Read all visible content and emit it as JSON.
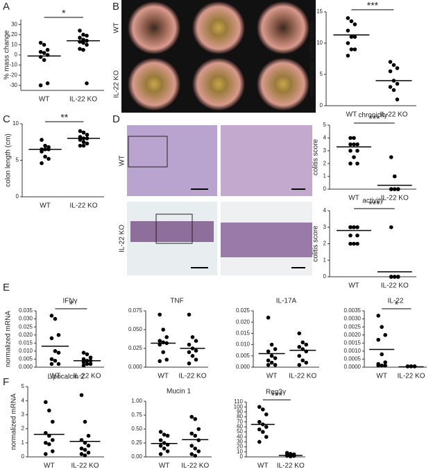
{
  "panel_labels": [
    "A",
    "B",
    "C",
    "D",
    "E",
    "F"
  ],
  "images": {
    "B": {
      "rows": [
        "WT",
        "IL-22 KO"
      ]
    },
    "D": {
      "rows": [
        "WT",
        "IL-22 KO"
      ]
    }
  },
  "chart_data": [
    {
      "type": "dot",
      "ylabel": "% mass change",
      "categories": [
        "WT",
        "IL-22 KO"
      ],
      "significance": "*",
      "points": [
        [
          12,
          10,
          5,
          3,
          2,
          0,
          -2,
          -5,
          -28,
          -30
        ],
        [
          24,
          20,
          19,
          17,
          15,
          14,
          13,
          12,
          10,
          6,
          5,
          -28
        ]
      ],
      "means": [
        -1,
        14
      ],
      "ylim": [
        -35,
        35
      ],
      "yticks": [
        -30,
        -20,
        -10,
        0,
        10,
        20,
        30
      ]
    },
    {
      "type": "dot",
      "ylabel": "endoscopic colitis score",
      "categories": [
        "WT",
        "IL-22 KO"
      ],
      "significance": "***",
      "points": [
        [
          14,
          13.5,
          13,
          12,
          11,
          11,
          10,
          9,
          9,
          8
        ],
        [
          7,
          6.5,
          6,
          5.5,
          4,
          3.5,
          3,
          2.5,
          1
        ]
      ],
      "means": [
        11.3,
        4
      ],
      "ylim": [
        0,
        15
      ],
      "yticks": [
        0,
        5,
        10,
        15
      ]
    },
    {
      "type": "dot",
      "ylabel": "colon length (cm)",
      "categories": [
        "WT",
        "IL-22 KO"
      ],
      "significance": "**",
      "points": [
        [
          7.8,
          7,
          6.8,
          6.5,
          6.5,
          6.5,
          6.2,
          5.5,
          5.2,
          4.6
        ],
        [
          9,
          8.8,
          8.5,
          8.2,
          8,
          8,
          7.8,
          7.5,
          7.3,
          7,
          7
        ]
      ],
      "means": [
        6.5,
        8
      ],
      "ylim": [
        0,
        10
      ],
      "yticks": [
        0,
        5,
        10
      ]
    },
    {
      "type": "dot",
      "title": "chronicity",
      "ylabel": "colitis score",
      "categories": [
        "WT",
        "IL-22 KO"
      ],
      "significance": "***",
      "points": [
        [
          4,
          4,
          3.5,
          3.5,
          3.5,
          3,
          3,
          2.5,
          2,
          2
        ],
        [
          2.5,
          1,
          0,
          0,
          0,
          0,
          0,
          0,
          0,
          0
        ]
      ],
      "means": [
        3.3,
        0.3
      ],
      "ylim": [
        0,
        5
      ],
      "yticks": [
        0,
        1,
        2,
        3,
        4,
        5
      ]
    },
    {
      "type": "dot",
      "title": "activity",
      "ylabel": "colitis score",
      "categories": [
        "WT",
        "IL-22 KO"
      ],
      "significance": "***",
      "points": [
        [
          3,
          3,
          3,
          3,
          3,
          2.5,
          2.5,
          2,
          2,
          2
        ],
        [
          3,
          0,
          0,
          0,
          0,
          0,
          0,
          0,
          0,
          0
        ]
      ],
      "means": [
        2.8,
        0.3
      ],
      "ylim": [
        0,
        4
      ],
      "yticks": [
        0,
        1,
        2,
        3,
        4
      ]
    },
    {
      "type": "dot",
      "title": "IFNγ",
      "ylabel": "normalized mRNA",
      "categories": [
        "WT",
        "IL-22 KO"
      ],
      "significance": "*",
      "points": [
        [
          0.032,
          0.03,
          0.02,
          0.018,
          0.01,
          0.009,
          0.005,
          0.004,
          0.002,
          0.002
        ],
        [
          0.009,
          0.008,
          0.006,
          0.005,
          0.004,
          0.004,
          0.003,
          0.002,
          0.002,
          0.001
        ]
      ],
      "means": [
        0.013,
        0.004
      ],
      "ylim": [
        0,
        0.035
      ],
      "yticks": [
        {
          "value": 0,
          "label": "0.000"
        },
        {
          "value": 0.005,
          "label": "0.005"
        },
        {
          "value": 0.01,
          "label": "0.010"
        },
        {
          "value": 0.015,
          "label": "0.015"
        },
        {
          "value": 0.02,
          "label": "0.020"
        },
        {
          "value": 0.025,
          "label": "0.025"
        },
        {
          "value": 0.03,
          "label": "0.030"
        },
        {
          "value": 0.035,
          "label": "0.035"
        }
      ]
    },
    {
      "type": "dot",
      "title": "TNF",
      "categories": [
        "WT",
        "IL-22 KO"
      ],
      "points": [
        [
          0.07,
          0.05,
          0.04,
          0.035,
          0.033,
          0.032,
          0.03,
          0.02,
          0.01,
          0.008
        ],
        [
          0.07,
          0.04,
          0.035,
          0.03,
          0.025,
          0.022,
          0.02,
          0.015,
          0.01,
          0.005
        ]
      ],
      "means": [
        0.032,
        0.025
      ],
      "ylim": [
        0,
        0.075
      ],
      "yticks": [
        {
          "value": 0,
          "label": "0.000"
        },
        {
          "value": 0.025,
          "label": "0.025"
        },
        {
          "value": 0.05,
          "label": "0.050"
        },
        {
          "value": 0.075,
          "label": "0.075"
        }
      ]
    },
    {
      "type": "dot",
      "title": "IL-17A",
      "categories": [
        "WT",
        "IL-22 KO"
      ],
      "points": [
        [
          0.022,
          0.01,
          0.008,
          0.007,
          0.005,
          0.004,
          0.003,
          0.002,
          0.001,
          0.001
        ],
        [
          0.015,
          0.011,
          0.01,
          0.009,
          0.008,
          0.007,
          0.005,
          0.003,
          0.002,
          0.001
        ]
      ],
      "means": [
        0.006,
        0.0075
      ],
      "ylim": [
        0,
        0.025
      ],
      "yticks": [
        {
          "value": 0,
          "label": "0.000"
        },
        {
          "value": 0.005,
          "label": "0.005"
        },
        {
          "value": 0.01,
          "label": "0.010"
        },
        {
          "value": 0.015,
          "label": "0.015"
        },
        {
          "value": 0.02,
          "label": "0.020"
        },
        {
          "value": 0.025,
          "label": "0.025"
        }
      ]
    },
    {
      "type": "dot",
      "title": "IL-22",
      "categories": [
        "WT",
        "IL-22 KO"
      ],
      "significance": "*",
      "points": [
        [
          0.0032,
          0.0025,
          0.002,
          0.0017,
          0.0008,
          0.0003,
          0.0002,
          0.0001,
          0.0001,
          0.0001
        ],
        [
          5e-05,
          5e-05,
          5e-05,
          5e-05,
          5e-05,
          5e-05
        ]
      ],
      "means": [
        0.0011,
        2e-05
      ],
      "ylim": [
        0,
        0.0035
      ],
      "yticks": [
        {
          "value": 0,
          "label": "0.0000"
        },
        {
          "value": 0.0005,
          "label": "0.0005"
        },
        {
          "value": 0.001,
          "label": "0.0010"
        },
        {
          "value": 0.0015,
          "label": "0.0015"
        },
        {
          "value": 0.002,
          "label": "0.0020"
        },
        {
          "value": 0.0025,
          "label": "0.0025"
        },
        {
          "value": 0.003,
          "label": "0.0030"
        },
        {
          "value": 0.0035,
          "label": "0.0035"
        }
      ]
    },
    {
      "type": "dot",
      "title": "Lipocalcin 2",
      "ylabel": "normalized mRNA",
      "categories": [
        "WT",
        "IL-22 KO"
      ],
      "points": [
        [
          3.9,
          3.3,
          2.5,
          1.7,
          1.5,
          1.2,
          1.0,
          0.9,
          0.4,
          0.2
        ],
        [
          4.4,
          2.5,
          1.5,
          1.2,
          1.0,
          0.8,
          0.6,
          0.5,
          0.3,
          0.2,
          0.1
        ]
      ],
      "means": [
        1.6,
        1.1
      ],
      "ylim": [
        0,
        5
      ],
      "yticks": [
        0,
        1,
        2,
        3,
        4,
        5
      ]
    },
    {
      "type": "dot",
      "title": "Mucin 1",
      "categories": [
        "WT",
        "IL-22 KO"
      ],
      "points": [
        [
          0.45,
          0.4,
          0.38,
          0.3,
          0.25,
          0.22,
          0.2,
          0.15,
          0.1,
          0.05
        ],
        [
          0.72,
          0.68,
          0.5,
          0.42,
          0.38,
          0.3,
          0.2,
          0.15,
          0.1,
          0.05,
          0.02
        ]
      ],
      "means": [
        0.24,
        0.31
      ],
      "ylim": [
        0,
        1
      ],
      "yticks": [
        {
          "value": 0,
          "label": "0.00"
        },
        {
          "value": 0.25,
          "label": "0.25"
        },
        {
          "value": 0.5,
          "label": "0.50"
        },
        {
          "value": 0.75,
          "label": "0.75"
        },
        {
          "value": 1,
          "label": "1.00"
        }
      ]
    },
    {
      "type": "dot",
      "title": "Reg3γ",
      "categories": [
        "WT",
        "IL-22 KO"
      ],
      "significance": "***",
      "points": [
        [
          100,
          95,
          85,
          70,
          65,
          60,
          55,
          50,
          40,
          30
        ],
        [
          8,
          6,
          5,
          4,
          3,
          2,
          2,
          1
        ]
      ],
      "means": [
        65,
        3
      ],
      "ylim": [
        0,
        110
      ],
      "yticks": [
        0,
        10,
        20,
        30,
        40,
        50,
        60,
        70,
        80,
        90,
        100,
        110
      ]
    }
  ]
}
